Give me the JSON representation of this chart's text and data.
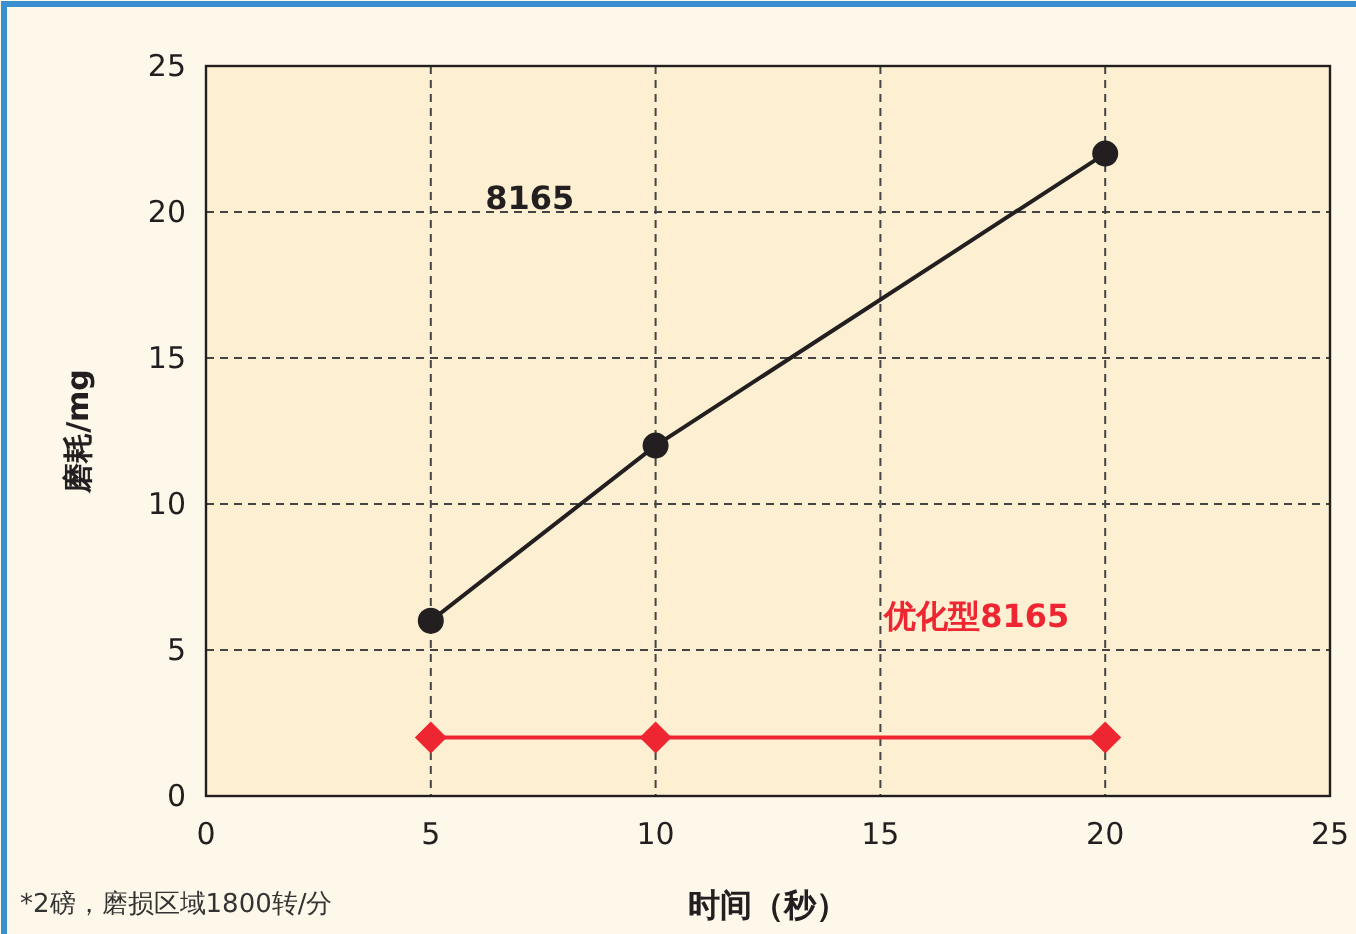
{
  "chart_data": {
    "type": "line",
    "xlabel": "时间（秒）",
    "ylabel": "磨耗/mg",
    "xlim": [
      0,
      25
    ],
    "ylim": [
      0,
      25
    ],
    "xticks": [
      0,
      5,
      10,
      15,
      20,
      25
    ],
    "yticks": [
      0,
      5,
      10,
      15,
      20,
      25
    ],
    "grid": true,
    "series": [
      {
        "name": "8165",
        "color": "#231f20",
        "marker": "circle",
        "x": [
          5,
          10,
          20
        ],
        "values": [
          6,
          12,
          22
        ]
      },
      {
        "name": "优化型8165",
        "color": "#ee2631",
        "marker": "diamond",
        "x": [
          5,
          10,
          20
        ],
        "values": [
          2,
          2,
          2
        ]
      }
    ],
    "annotations": [
      "*2磅，磨损区域1800转/分"
    ]
  }
}
